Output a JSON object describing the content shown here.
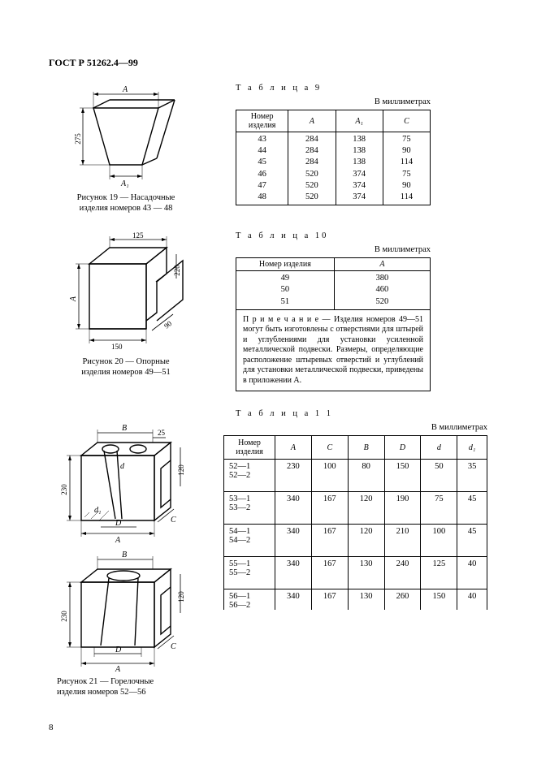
{
  "header": "ГОСТ Р 51262.4—99",
  "page_number": "8",
  "fig19_caption_l1": "Рисунок 19 — Насадочные",
  "fig19_caption_l2": "изделия номеров 43 — 48",
  "fig19_A": "A",
  "fig19_A1": "A₁",
  "fig19_275": "275",
  "fig20_caption_l1": "Рисунок 20 — Опорные",
  "fig20_caption_l2": "изделия номеров 49—51",
  "fig20_A": "A",
  "fig20_125": "125",
  "fig20_220": "220",
  "fig20_90": "90",
  "fig20_150": "150",
  "fig21_caption_l1": "Рисунок 21 — Горелочные",
  "fig21_caption_l2": "изделия номеров 52—56",
  "fig21_A": "A",
  "fig21_B": "B",
  "fig21_C": "C",
  "fig21_D": "D",
  "fig21_d": "d",
  "fig21_d1": "d₁",
  "fig21_230": "230",
  "fig21_120": "120",
  "fig21_25": "25",
  "t9_label": "Т а б л и ц а  9",
  "t9_units": "В миллиметрах",
  "t9_h1": "Номер изделия",
  "t9_h2": "A",
  "t9_h3": "A₁",
  "t9_h4": "C",
  "t9": [
    {
      "n": "43",
      "a": "284",
      "a1": "138",
      "c": "75"
    },
    {
      "n": "44",
      "a": "284",
      "a1": "138",
      "c": "90"
    },
    {
      "n": "45",
      "a": "284",
      "a1": "138",
      "c": "114"
    },
    {
      "n": "46",
      "a": "520",
      "a1": "374",
      "c": "75"
    },
    {
      "n": "47",
      "a": "520",
      "a1": "374",
      "c": "90"
    },
    {
      "n": "48",
      "a": "520",
      "a1": "374",
      "c": "114"
    }
  ],
  "t10_label": "Т а б л и ц а  10",
  "t10_units": "В миллиметрах",
  "t10_h1": "Номер изделия",
  "t10_h2": "A",
  "t10": [
    {
      "n": "49",
      "a": "380"
    },
    {
      "n": "50",
      "a": "460"
    },
    {
      "n": "51",
      "a": "520"
    }
  ],
  "t10_note": "П р и м е ч а н и е — Изделия номеров 49—51 могут быть изготовлены с отверстиями для штырей и углублениями для установки усиленной металлической подвески. Размеры, определяющие расположение штыревых отверстий и углублений для установки металлической подвески, приведены в приложении А.",
  "t11_label": "Т а б л и ц а 1 1",
  "t11_units": "В миллиметрах",
  "t11_h1": "Номер изделия",
  "t11_hA": "A",
  "t11_hC": "C",
  "t11_hB": "B",
  "t11_hD": "D",
  "t11_hd": "d",
  "t11_hd1": "d₁",
  "t11": [
    {
      "n1": "52—1",
      "n2": "52—2",
      "A": "230",
      "C": "100",
      "B": "80",
      "D": "150",
      "d": "50",
      "d1": "35"
    },
    {
      "n1": "53—1",
      "n2": "53—2",
      "A": "340",
      "C": "167",
      "B": "120",
      "D": "190",
      "d": "75",
      "d1": "45"
    },
    {
      "n1": "54—1",
      "n2": "54—2",
      "A": "340",
      "C": "167",
      "B": "120",
      "D": "210",
      "d": "100",
      "d1": "45"
    },
    {
      "n1": "55—1",
      "n2": "55—2",
      "A": "340",
      "C": "167",
      "B": "130",
      "D": "240",
      "d": "125",
      "d1": "40"
    },
    {
      "n1": "56—1",
      "n2": "56—2",
      "A": "340",
      "C": "167",
      "B": "130",
      "D": "260",
      "d": "150",
      "d1": "40"
    }
  ]
}
